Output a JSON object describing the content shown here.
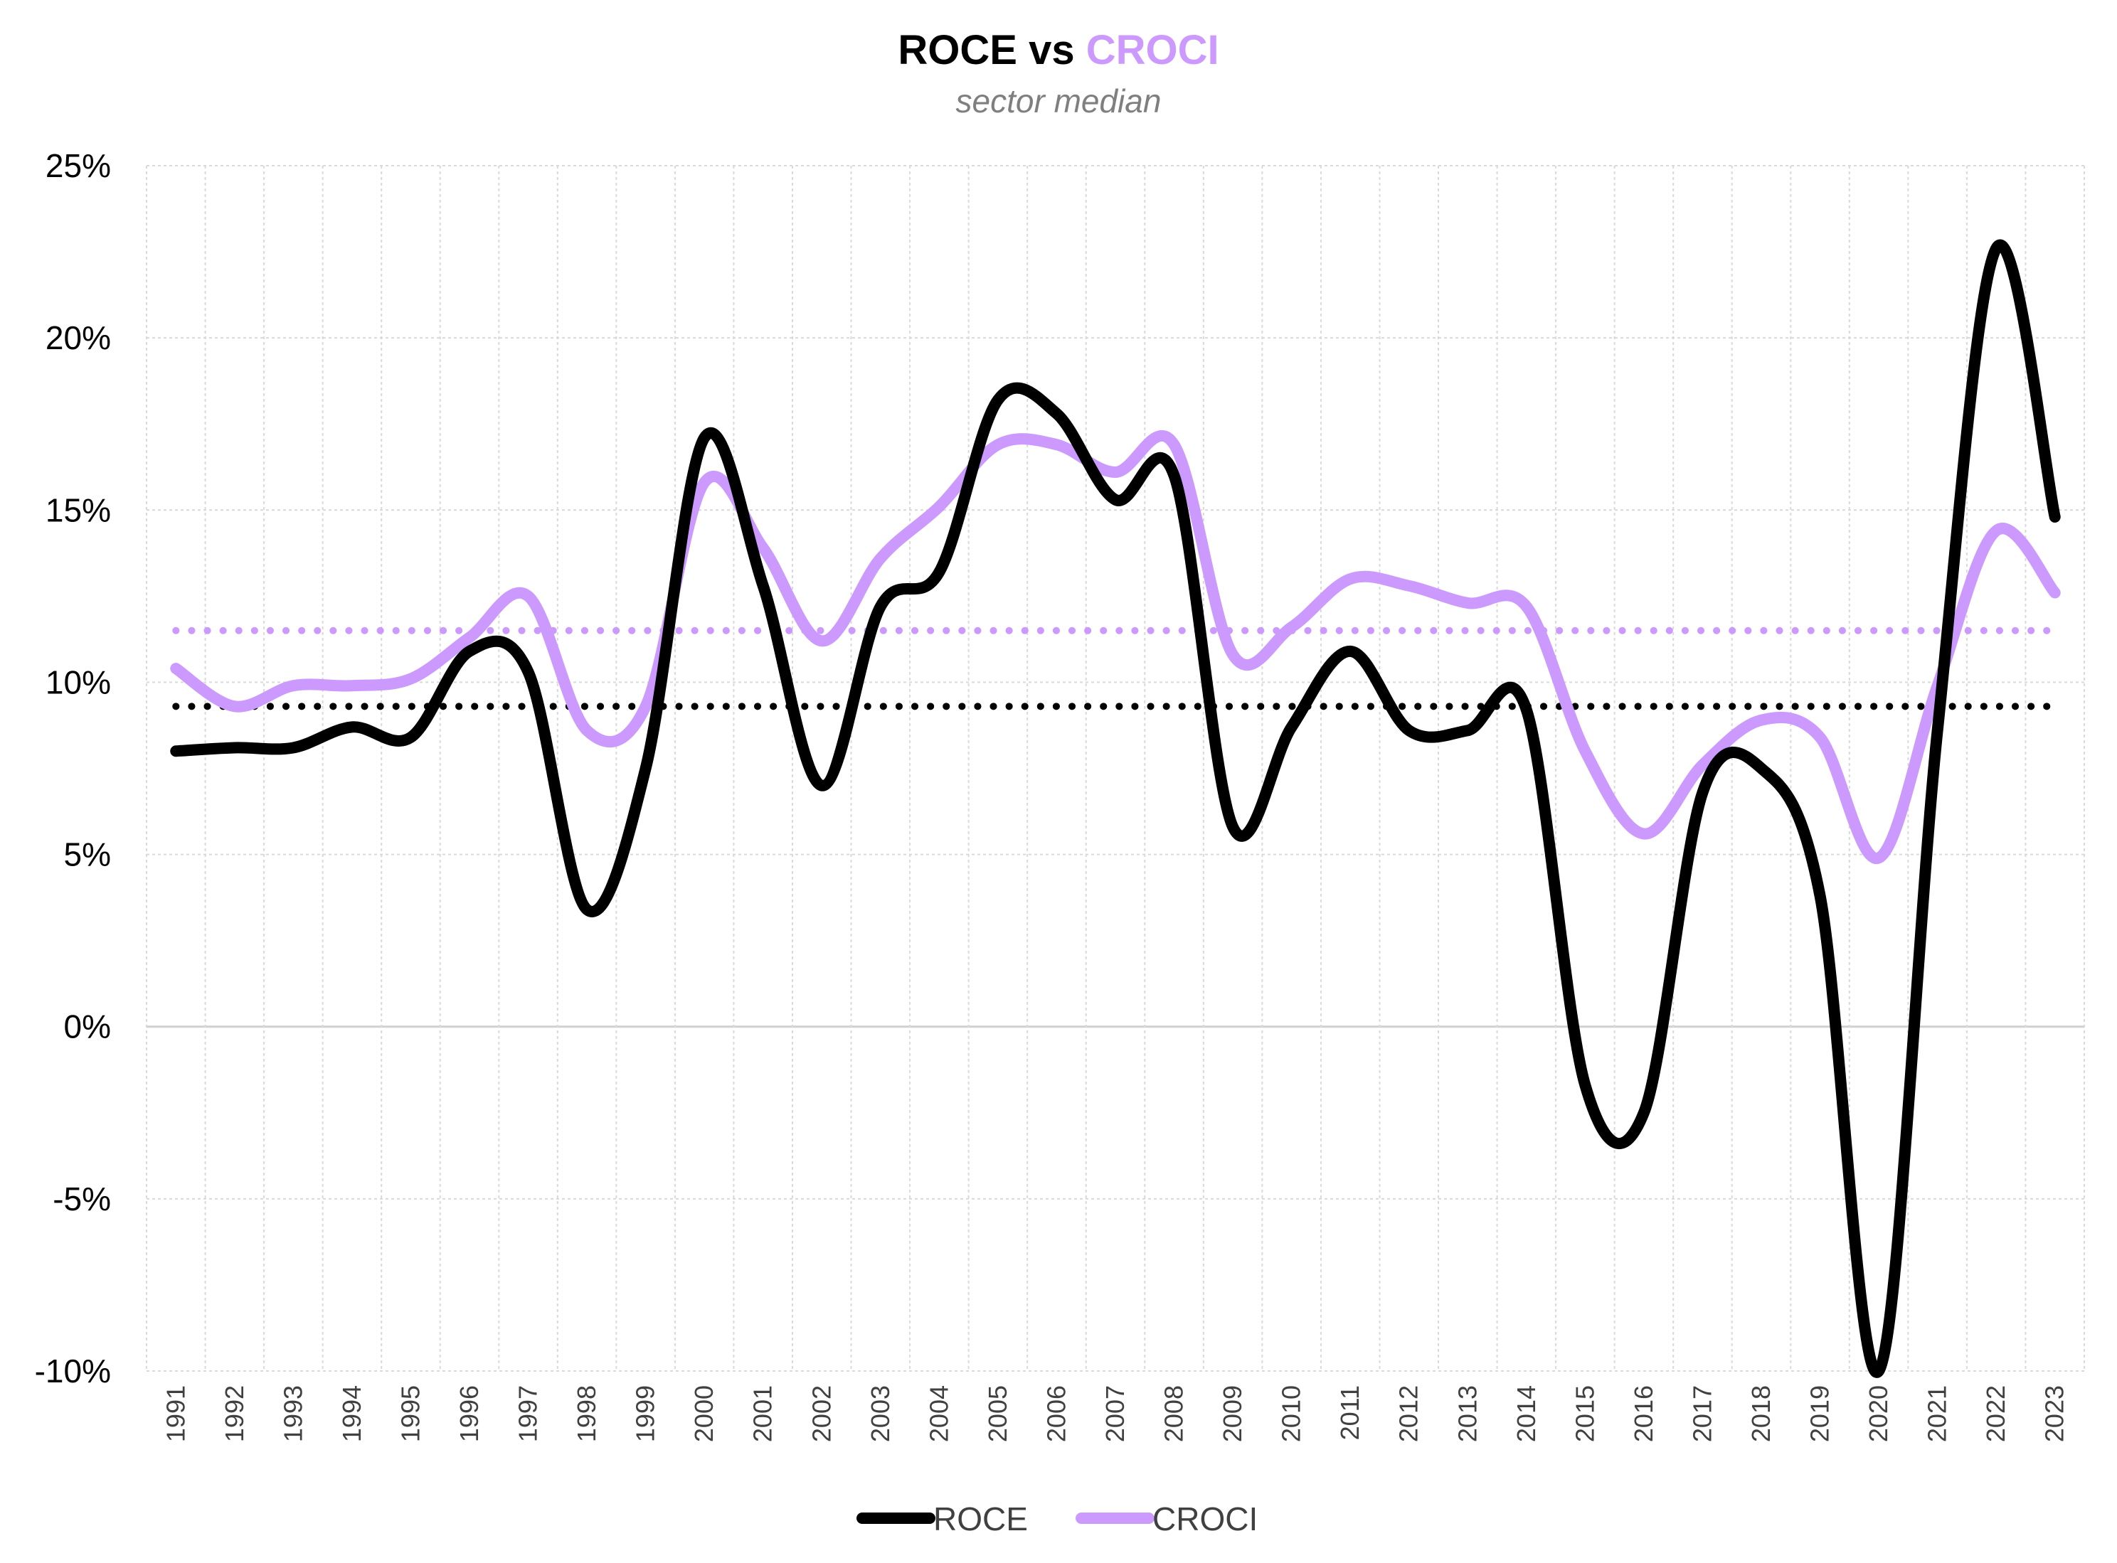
{
  "chart_data": {
    "type": "line",
    "title_part1": "ROCE vs ",
    "title_part2": "CROCI",
    "subtitle": "sector median",
    "x": [
      "1991",
      "1992",
      "1993",
      "1994",
      "1995",
      "1996",
      "1997",
      "1998",
      "1999",
      "2000",
      "2001",
      "2002",
      "2003",
      "2004",
      "2005",
      "2006",
      "2007",
      "2008",
      "2009",
      "2010",
      "2011",
      "2012",
      "2013",
      "2014",
      "2015",
      "2016",
      "2017",
      "2018",
      "2019",
      "2020",
      "2021",
      "2022",
      "2023"
    ],
    "ylim": [
      -10,
      25
    ],
    "yticks": [
      -10,
      -5,
      0,
      5,
      10,
      15,
      20,
      25
    ],
    "ytick_labels": [
      "-10%",
      "-5%",
      "0%",
      "5%",
      "10%",
      "15%",
      "20%",
      "25%"
    ],
    "grid": true,
    "legend_position": "bottom-center",
    "series": [
      {
        "name": "ROCE",
        "color": "#000000",
        "values": [
          8.0,
          8.1,
          8.1,
          8.7,
          8.4,
          10.9,
          10.3,
          3.4,
          7.5,
          17.1,
          12.8,
          7.0,
          12.2,
          13.2,
          18.2,
          17.8,
          15.3,
          16.0,
          5.8,
          8.7,
          10.9,
          8.6,
          8.6,
          9.2,
          -1.7,
          -2.5,
          6.8,
          7.5,
          3.8,
          -10.0,
          8.6,
          22.6,
          14.8
        ],
        "average": 9.3
      },
      {
        "name": "CROCI",
        "color": "#cc99ff",
        "values": [
          10.4,
          9.3,
          9.9,
          9.9,
          10.1,
          11.3,
          12.5,
          8.6,
          9.3,
          15.8,
          13.9,
          11.2,
          13.6,
          15.1,
          16.9,
          16.9,
          16.1,
          16.9,
          10.8,
          11.6,
          13.0,
          12.8,
          12.3,
          12.2,
          8.0,
          5.6,
          7.6,
          8.9,
          8.4,
          4.9,
          9.9,
          14.4,
          12.6
        ],
        "average": 11.5
      }
    ]
  }
}
